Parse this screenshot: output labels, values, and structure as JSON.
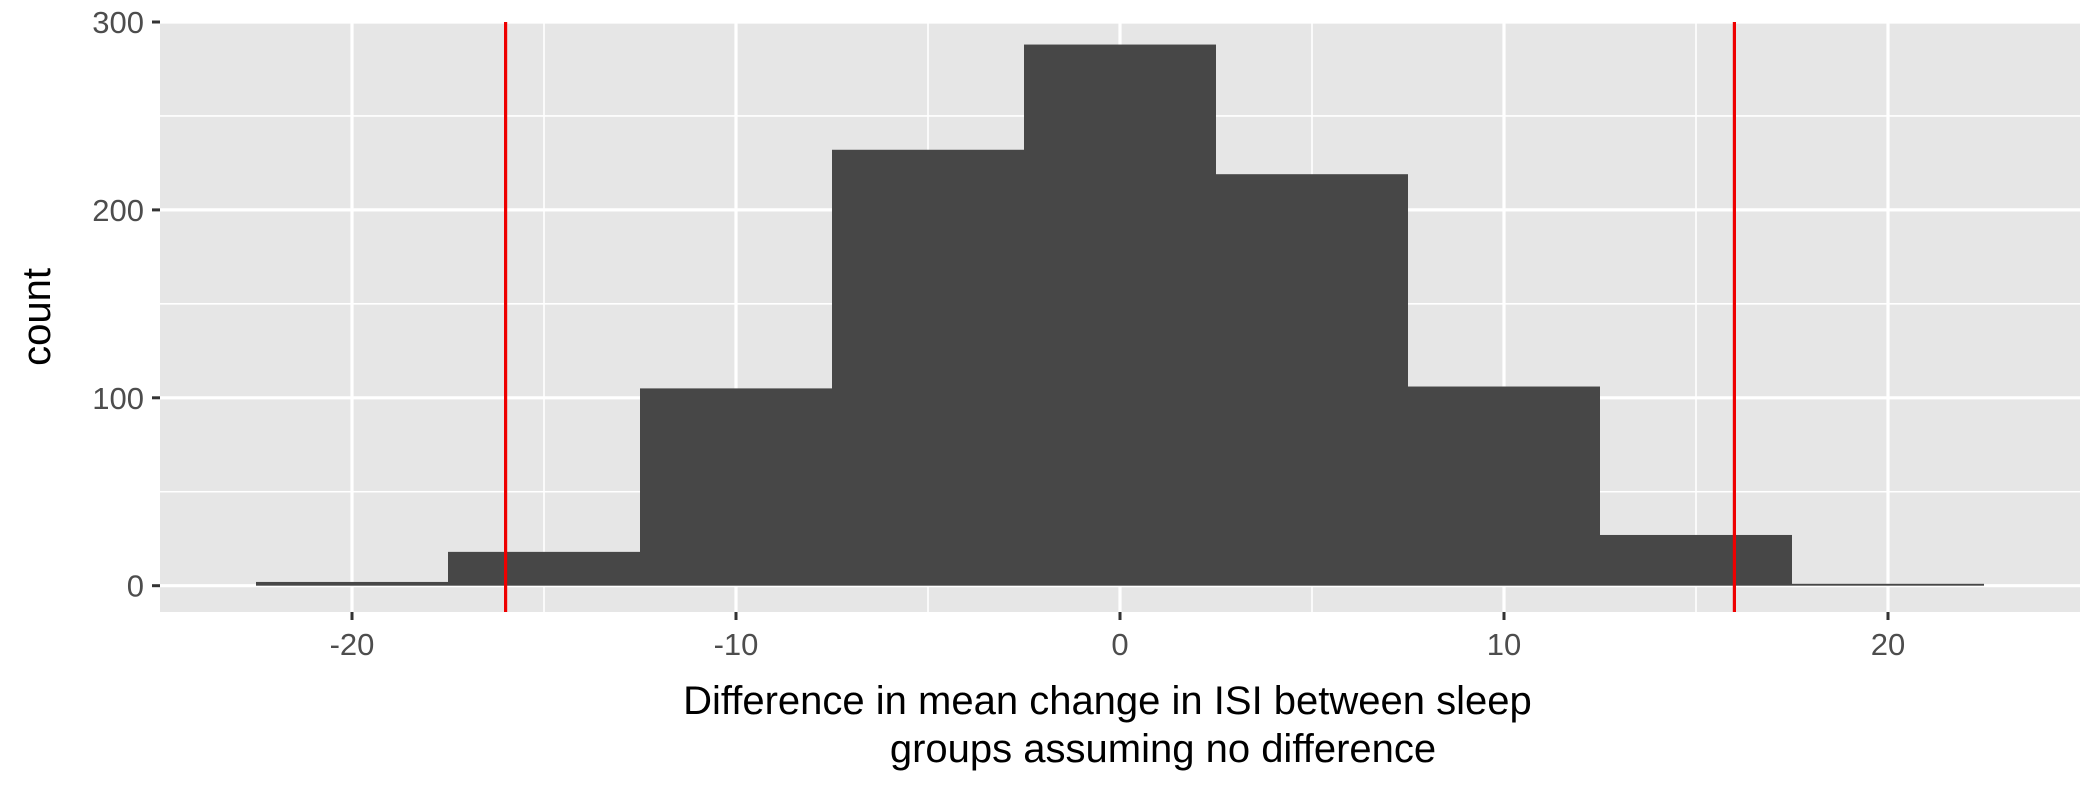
{
  "chart_data": {
    "type": "histogram",
    "title": "",
    "xlabel": [
      "Difference in mean change in ISI between sleep",
      "groups assuming no difference"
    ],
    "ylabel": "count",
    "xlim": [
      -25,
      25
    ],
    "ylim": [
      -14,
      300
    ],
    "x_ticks": [
      -20,
      -10,
      0,
      10,
      20
    ],
    "x_tick_labels": [
      "-20",
      "-10",
      "0",
      "10",
      "20"
    ],
    "y_ticks": [
      0,
      100,
      200,
      300
    ],
    "y_tick_labels": [
      "0",
      "100",
      "200",
      "300"
    ],
    "bins": [
      {
        "x0": -22.5,
        "x1": -17.5,
        "count": 2
      },
      {
        "x0": -17.5,
        "x1": -12.5,
        "count": 18
      },
      {
        "x0": -12.5,
        "x1": -7.5,
        "count": 105
      },
      {
        "x0": -7.5,
        "x1": -2.5,
        "count": 232
      },
      {
        "x0": -2.5,
        "x1": 2.5,
        "count": 288
      },
      {
        "x0": 2.5,
        "x1": 7.5,
        "count": 219
      },
      {
        "x0": 7.5,
        "x1": 12.5,
        "count": 106
      },
      {
        "x0": 12.5,
        "x1": 17.5,
        "count": 27
      },
      {
        "x0": 17.5,
        "x1": 22.5,
        "count": 1
      }
    ],
    "vertical_lines": [
      {
        "x": -16,
        "color": "#ee0000"
      },
      {
        "x": 16,
        "color": "#ee0000"
      }
    ],
    "bar_color": "#474747",
    "panel_background": "#e6e6e6",
    "grid": true,
    "legend": "none"
  }
}
